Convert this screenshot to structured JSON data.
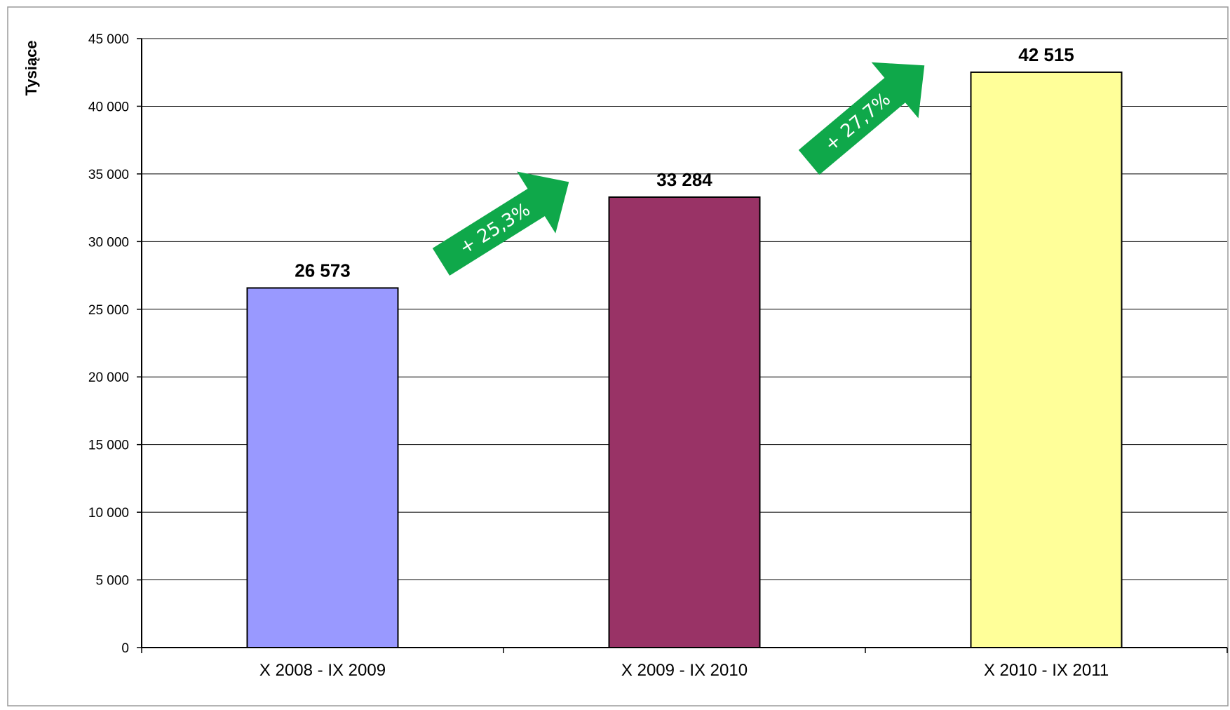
{
  "chart_data": {
    "type": "bar",
    "ylabel": "Tysiące",
    "xlabel": "",
    "ylim": [
      0,
      45000
    ],
    "yticks": [
      0,
      5000,
      10000,
      15000,
      20000,
      25000,
      30000,
      35000,
      40000,
      45000
    ],
    "ytick_labels": [
      "0",
      "5 000",
      "10 000",
      "15 000",
      "20 000",
      "25 000",
      "30 000",
      "35 000",
      "40 000",
      "45 000"
    ],
    "categories": [
      "X 2008 - IX 2009",
      "X 2009 - IX 2010",
      "X 2010 - IX 2011"
    ],
    "values": [
      26573,
      33284,
      42515
    ],
    "value_labels": [
      "26 573",
      "33 284",
      "42 515"
    ],
    "bar_colors": [
      "#9999ff",
      "#993366",
      "#ffff99"
    ],
    "grid": true,
    "legend": "none",
    "annotations": [
      {
        "text": "+ 25,3%",
        "from": "X 2008 - IX 2009",
        "to": "X 2009 - IX 2010",
        "color": "#0fa84a"
      },
      {
        "text": "+ 27,7%",
        "from": "X 2009 - IX 2010",
        "to": "X 2010 - IX 2011",
        "color": "#0fa84a"
      }
    ]
  }
}
